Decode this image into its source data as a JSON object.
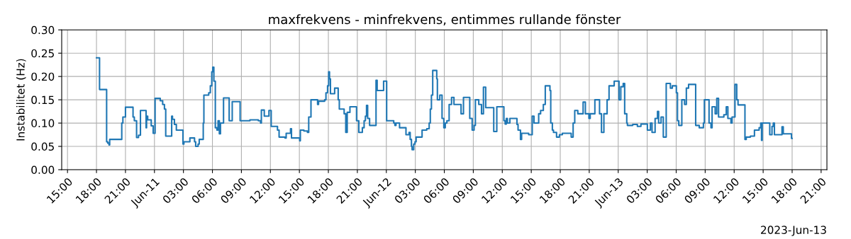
{
  "chart_data": {
    "type": "step",
    "title": "maxfrekvens - minfrekvens, entimmes rullande fönster",
    "ylabel": "Instabilitet (Hz)",
    "annotations": [
      "2023-Jun-13"
    ],
    "grid": true,
    "color": "#1f77b4",
    "x": [
      "2023-06-10T18:00",
      "2023-06-10T18:19",
      "2023-06-10T19:03",
      "2023-06-10T19:10",
      "2023-06-10T19:18",
      "2023-06-10T19:22",
      "2023-06-10T20:37",
      "2023-06-10T20:44",
      "2023-06-10T21:00",
      "2023-06-10T21:47",
      "2023-06-10T21:55",
      "2023-06-10T22:09",
      "2023-06-10T22:21",
      "2023-06-10T22:33",
      "2023-06-10T23:08",
      "2023-06-10T23:11",
      "2023-06-10T23:18",
      "2023-06-10T23:40",
      "2023-06-10T23:52",
      "2023-06-11T00:04",
      "2023-06-11T00:36",
      "2023-06-11T00:51",
      "2023-06-11T01:02",
      "2023-06-11T01:10",
      "2023-06-11T01:47",
      "2023-06-11T01:52",
      "2023-06-11T02:04",
      "2023-06-11T02:16",
      "2023-06-11T02:57",
      "2023-06-11T03:03",
      "2023-06-11T03:40",
      "2023-06-11T04:09",
      "2023-06-11T04:16",
      "2023-06-11T04:31",
      "2023-06-11T04:38",
      "2023-06-11T05:03",
      "2023-06-11T05:07",
      "2023-06-11T05:37",
      "2023-06-11T05:47",
      "2023-06-11T05:56",
      "2023-06-11T06:02",
      "2023-06-11T06:09",
      "2023-06-11T06:18",
      "2023-06-11T06:28",
      "2023-06-11T06:35",
      "2023-06-11T06:43",
      "2023-06-11T06:50",
      "2023-06-11T07:09",
      "2023-06-11T07:44",
      "2023-06-11T08:03",
      "2023-06-11T08:52",
      "2023-06-11T09:53",
      "2023-06-11T10:45",
      "2023-06-11T10:59",
      "2023-06-11T11:04",
      "2023-06-11T11:22",
      "2023-06-11T11:51",
      "2023-06-11T12:05",
      "2023-06-11T12:44",
      "2023-06-11T12:54",
      "2023-06-11T13:31",
      "2023-06-11T13:38",
      "2023-06-11T14:05",
      "2023-06-11T14:11",
      "2023-06-11T15:02",
      "2023-06-11T15:06",
      "2023-06-11T15:28",
      "2023-06-11T15:50",
      "2023-06-11T15:58",
      "2023-06-11T16:12",
      "2023-06-11T16:53",
      "2023-06-11T16:59",
      "2023-06-11T17:37",
      "2023-06-11T17:45",
      "2023-06-11T17:55",
      "2023-06-11T18:02",
      "2023-06-11T18:07",
      "2023-06-11T18:13",
      "2023-06-11T18:39",
      "2023-06-11T19:01",
      "2023-06-11T19:08",
      "2023-06-11T19:38",
      "2023-06-11T19:48",
      "2023-06-11T19:57",
      "2023-06-11T20:14",
      "2023-06-11T20:55",
      "2023-06-11T21:09",
      "2023-06-11T21:31",
      "2023-06-11T21:42",
      "2023-06-11T21:50",
      "2023-06-11T21:57",
      "2023-06-11T22:04",
      "2023-06-11T22:16",
      "2023-06-11T22:56",
      "2023-06-11T23:03",
      "2023-06-11T23:43",
      "2023-06-12T00:02",
      "2023-06-12T00:46",
      "2023-06-12T00:53",
      "2023-06-12T01:00",
      "2023-06-12T01:22",
      "2023-06-12T02:02",
      "2023-06-12T02:21",
      "2023-06-12T02:28",
      "2023-06-12T02:36",
      "2023-06-12T02:40",
      "2023-06-12T02:50",
      "2023-06-12T02:58",
      "2023-06-12T03:05",
      "2023-06-12T03:42",
      "2023-06-12T04:11",
      "2023-06-12T04:26",
      "2023-06-12T04:33",
      "2023-06-12T04:40",
      "2023-06-12T04:48",
      "2023-06-12T05:13",
      "2023-06-12T05:17",
      "2023-06-12T05:32",
      "2023-06-12T05:46",
      "2023-06-12T05:57",
      "2023-06-12T06:06",
      "2023-06-12T06:16",
      "2023-06-12T06:30",
      "2023-06-12T06:45",
      "2023-06-12T07:00",
      "2023-06-12T07:44",
      "2023-06-12T07:59",
      "2023-06-12T08:38",
      "2023-06-12T08:53",
      "2023-06-12T09:05",
      "2023-06-12T09:13",
      "2023-06-12T09:34",
      "2023-06-12T09:51",
      "2023-06-12T10:03",
      "2023-06-12T10:17",
      "2023-06-12T11:07",
      "2023-06-12T11:26",
      "2023-06-12T12:10",
      "2023-06-12T12:18",
      "2023-06-12T12:25",
      "2023-06-12T12:32",
      "2023-06-12T12:47",
      "2023-06-12T13:31",
      "2023-06-12T13:38",
      "2023-06-12T13:53",
      "2023-06-12T14:00",
      "2023-06-12T14:44",
      "2023-06-12T15:06",
      "2023-06-12T15:17",
      "2023-06-12T15:46",
      "2023-06-12T15:58",
      "2023-06-12T16:15",
      "2023-06-12T16:27",
      "2023-06-12T16:56",
      "2023-06-12T17:01",
      "2023-06-12T17:11",
      "2023-06-12T17:18",
      "2023-06-12T17:37",
      "2023-06-12T17:55",
      "2023-06-12T18:13",
      "2023-06-12T19:08",
      "2023-06-12T19:20",
      "2023-06-12T19:30",
      "2023-06-12T19:49",
      "2023-06-12T20:22",
      "2023-06-12T20:36",
      "2023-06-12T20:58",
      "2023-06-12T21:06",
      "2023-06-12T21:35",
      "2023-06-12T22:04",
      "2023-06-12T22:16",
      "2023-06-12T22:31",
      "2023-06-12T22:51",
      "2023-06-12T23:03",
      "2023-06-12T23:35",
      "2023-06-13T00:05",
      "2023-06-13T00:16",
      "2023-06-13T00:31",
      "2023-06-13T00:40",
      "2023-06-13T00:53",
      "2023-06-13T00:57",
      "2023-06-13T01:30",
      "2023-06-13T01:59",
      "2023-06-13T02:21",
      "2023-06-13T03:01",
      "2023-06-13T03:20",
      "2023-06-13T03:30",
      "2023-06-13T03:49",
      "2023-06-13T04:04",
      "2023-06-13T04:11",
      "2023-06-13T04:26",
      "2023-06-13T04:40",
      "2023-06-13T04:58",
      "2023-06-13T05:24",
      "2023-06-13T05:36",
      "2023-06-13T06:01",
      "2023-06-13T06:08",
      "2023-06-13T06:16",
      "2023-06-13T06:35",
      "2023-06-13T06:52",
      "2023-06-13T07:03",
      "2023-06-13T07:17",
      "2023-06-13T08:01",
      "2023-06-13T08:23",
      "2023-06-13T08:49",
      "2023-06-13T08:55",
      "2023-06-13T09:24",
      "2023-06-13T09:36",
      "2023-06-13T09:43",
      "2023-06-13T10:02",
      "2023-06-13T10:12",
      "2023-06-13T10:23",
      "2023-06-13T10:56",
      "2023-06-13T11:11",
      "2023-06-13T11:21",
      "2023-06-13T11:40",
      "2023-06-13T11:47",
      "2023-06-13T12:05",
      "2023-06-13T12:16",
      "2023-06-13T12:24",
      "2023-06-13T13:07",
      "2023-06-13T13:15",
      "2023-06-13T13:41",
      "2023-06-13T14:06",
      "2023-06-13T14:35",
      "2023-06-13T14:45",
      "2023-06-13T14:50",
      "2023-06-13T14:54",
      "2023-06-13T15:41",
      "2023-06-13T15:55",
      "2023-06-13T16:03",
      "2023-06-13T16:10",
      "2023-06-13T16:57",
      "2023-06-13T17:05",
      "2023-06-13T17:56",
      "2023-06-13T18:00"
    ],
    "values": [
      0.24,
      0.172,
      0.06,
      0.057,
      0.053,
      0.065,
      0.1,
      0.113,
      0.134,
      0.113,
      0.105,
      0.069,
      0.074,
      0.127,
      0.09,
      0.115,
      0.107,
      0.094,
      0.078,
      0.153,
      0.148,
      0.14,
      0.13,
      0.072,
      0.115,
      0.108,
      0.097,
      0.085,
      0.055,
      0.06,
      0.068,
      0.06,
      0.05,
      0.055,
      0.065,
      0.1,
      0.16,
      0.165,
      0.18,
      0.21,
      0.22,
      0.19,
      0.09,
      0.085,
      0.105,
      0.077,
      0.1,
      0.154,
      0.105,
      0.146,
      0.105,
      0.107,
      0.105,
      0.1,
      0.128,
      0.115,
      0.127,
      0.093,
      0.085,
      0.07,
      0.068,
      0.078,
      0.088,
      0.068,
      0.062,
      0.085,
      0.083,
      0.08,
      0.113,
      0.15,
      0.14,
      0.147,
      0.15,
      0.165,
      0.18,
      0.21,
      0.195,
      0.163,
      0.175,
      0.15,
      0.13,
      0.12,
      0.08,
      0.123,
      0.135,
      0.105,
      0.08,
      0.09,
      0.105,
      0.115,
      0.138,
      0.11,
      0.095,
      0.192,
      0.17,
      0.19,
      0.105,
      0.1,
      0.095,
      0.1,
      0.09,
      0.075,
      0.08,
      0.065,
      0.05,
      0.043,
      0.055,
      0.06,
      0.07,
      0.085,
      0.088,
      0.1,
      0.13,
      0.16,
      0.213,
      0.195,
      0.15,
      0.16,
      0.11,
      0.09,
      0.1,
      0.105,
      0.14,
      0.155,
      0.14,
      0.12,
      0.155,
      0.11,
      0.085,
      0.095,
      0.15,
      0.14,
      0.12,
      0.177,
      0.133,
      0.082,
      0.135,
      0.105,
      0.098,
      0.11,
      0.1,
      0.11,
      0.097,
      0.085,
      0.065,
      0.078,
      0.075,
      0.115,
      0.1,
      0.12,
      0.127,
      0.14,
      0.18,
      0.17,
      0.1,
      0.085,
      0.08,
      0.07,
      0.075,
      0.078,
      0.07,
      0.1,
      0.127,
      0.12,
      0.145,
      0.12,
      0.11,
      0.12,
      0.15,
      0.12,
      0.08,
      0.12,
      0.15,
      0.18,
      0.19,
      0.15,
      0.178,
      0.185,
      0.12,
      0.1,
      0.095,
      0.097,
      0.093,
      0.098,
      0.085,
      0.1,
      0.08,
      0.11,
      0.125,
      0.1,
      0.113,
      0.07,
      0.185,
      0.175,
      0.18,
      0.165,
      0.105,
      0.095,
      0.15,
      0.14,
      0.175,
      0.183,
      0.095,
      0.09,
      0.1,
      0.15,
      0.1,
      0.09,
      0.135,
      0.12,
      0.153,
      0.113,
      0.118,
      0.135,
      0.11,
      0.1,
      0.113,
      0.183,
      0.15,
      0.139,
      0.065,
      0.07,
      0.072,
      0.085,
      0.09,
      0.1,
      0.063,
      0.1,
      0.075,
      0.093,
      0.1,
      0.075,
      0.092,
      0.077,
      0.067,
      0.067
    ],
    "xlim": [
      "2023-06-10T14:24",
      "2023-06-13T21:36"
    ],
    "xticks": [
      {
        "value": "2023-06-10T15:00",
        "label": "15:00"
      },
      {
        "value": "2023-06-10T18:00",
        "label": "18:00"
      },
      {
        "value": "2023-06-10T21:00",
        "label": "21:00"
      },
      {
        "value": "2023-06-11T00:00",
        "label": "Jun-11"
      },
      {
        "value": "2023-06-11T03:00",
        "label": "03:00"
      },
      {
        "value": "2023-06-11T06:00",
        "label": "06:00"
      },
      {
        "value": "2023-06-11T09:00",
        "label": "09:00"
      },
      {
        "value": "2023-06-11T12:00",
        "label": "12:00"
      },
      {
        "value": "2023-06-11T15:00",
        "label": "15:00"
      },
      {
        "value": "2023-06-11T18:00",
        "label": "18:00"
      },
      {
        "value": "2023-06-11T21:00",
        "label": "21:00"
      },
      {
        "value": "2023-06-12T00:00",
        "label": "Jun-12"
      },
      {
        "value": "2023-06-12T03:00",
        "label": "03:00"
      },
      {
        "value": "2023-06-12T06:00",
        "label": "06:00"
      },
      {
        "value": "2023-06-12T09:00",
        "label": "09:00"
      },
      {
        "value": "2023-06-12T12:00",
        "label": "12:00"
      },
      {
        "value": "2023-06-12T15:00",
        "label": "15:00"
      },
      {
        "value": "2023-06-12T18:00",
        "label": "18:00"
      },
      {
        "value": "2023-06-12T21:00",
        "label": "21:00"
      },
      {
        "value": "2023-06-13T00:00",
        "label": "Jun-13"
      },
      {
        "value": "2023-06-13T03:00",
        "label": "03:00"
      },
      {
        "value": "2023-06-13T06:00",
        "label": "06:00"
      },
      {
        "value": "2023-06-13T09:00",
        "label": "09:00"
      },
      {
        "value": "2023-06-13T12:00",
        "label": "12:00"
      },
      {
        "value": "2023-06-13T15:00",
        "label": "15:00"
      },
      {
        "value": "2023-06-13T18:00",
        "label": "18:00"
      },
      {
        "value": "2023-06-13T21:00",
        "label": "21:00"
      }
    ],
    "ylim": [
      0,
      0.3
    ],
    "yticks": [
      {
        "value": 0,
        "label": "0.00"
      },
      {
        "value": 0.05,
        "label": "0.05"
      },
      {
        "value": 0.1,
        "label": "0.10"
      },
      {
        "value": 0.15,
        "label": "0.15"
      },
      {
        "value": 0.2,
        "label": "0.20"
      },
      {
        "value": 0.25,
        "label": "0.25"
      },
      {
        "value": 0.3,
        "label": "0.30"
      }
    ]
  }
}
